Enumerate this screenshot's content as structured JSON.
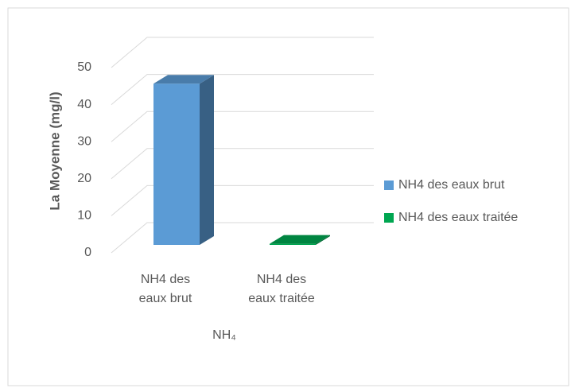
{
  "chart_data": {
    "type": "bar3d",
    "y_axis_label": "La Moyenne (mg/l)",
    "x_axis_label": "NH₄",
    "categories": [
      "NH4 des eaux brut",
      "NH4 des eaux traitée"
    ],
    "series": [
      {
        "name": "NH4 des eaux brut",
        "color": "#5b9bd5",
        "values": [
          43.5,
          null
        ]
      },
      {
        "name": "NH4 des eaux traitée",
        "color": "#00a651",
        "values": [
          null,
          0.3
        ]
      }
    ],
    "ylim": [
      0,
      50
    ],
    "yticks": [
      0,
      10,
      20,
      30,
      40,
      50
    ],
    "grid": true,
    "legend": "right"
  }
}
